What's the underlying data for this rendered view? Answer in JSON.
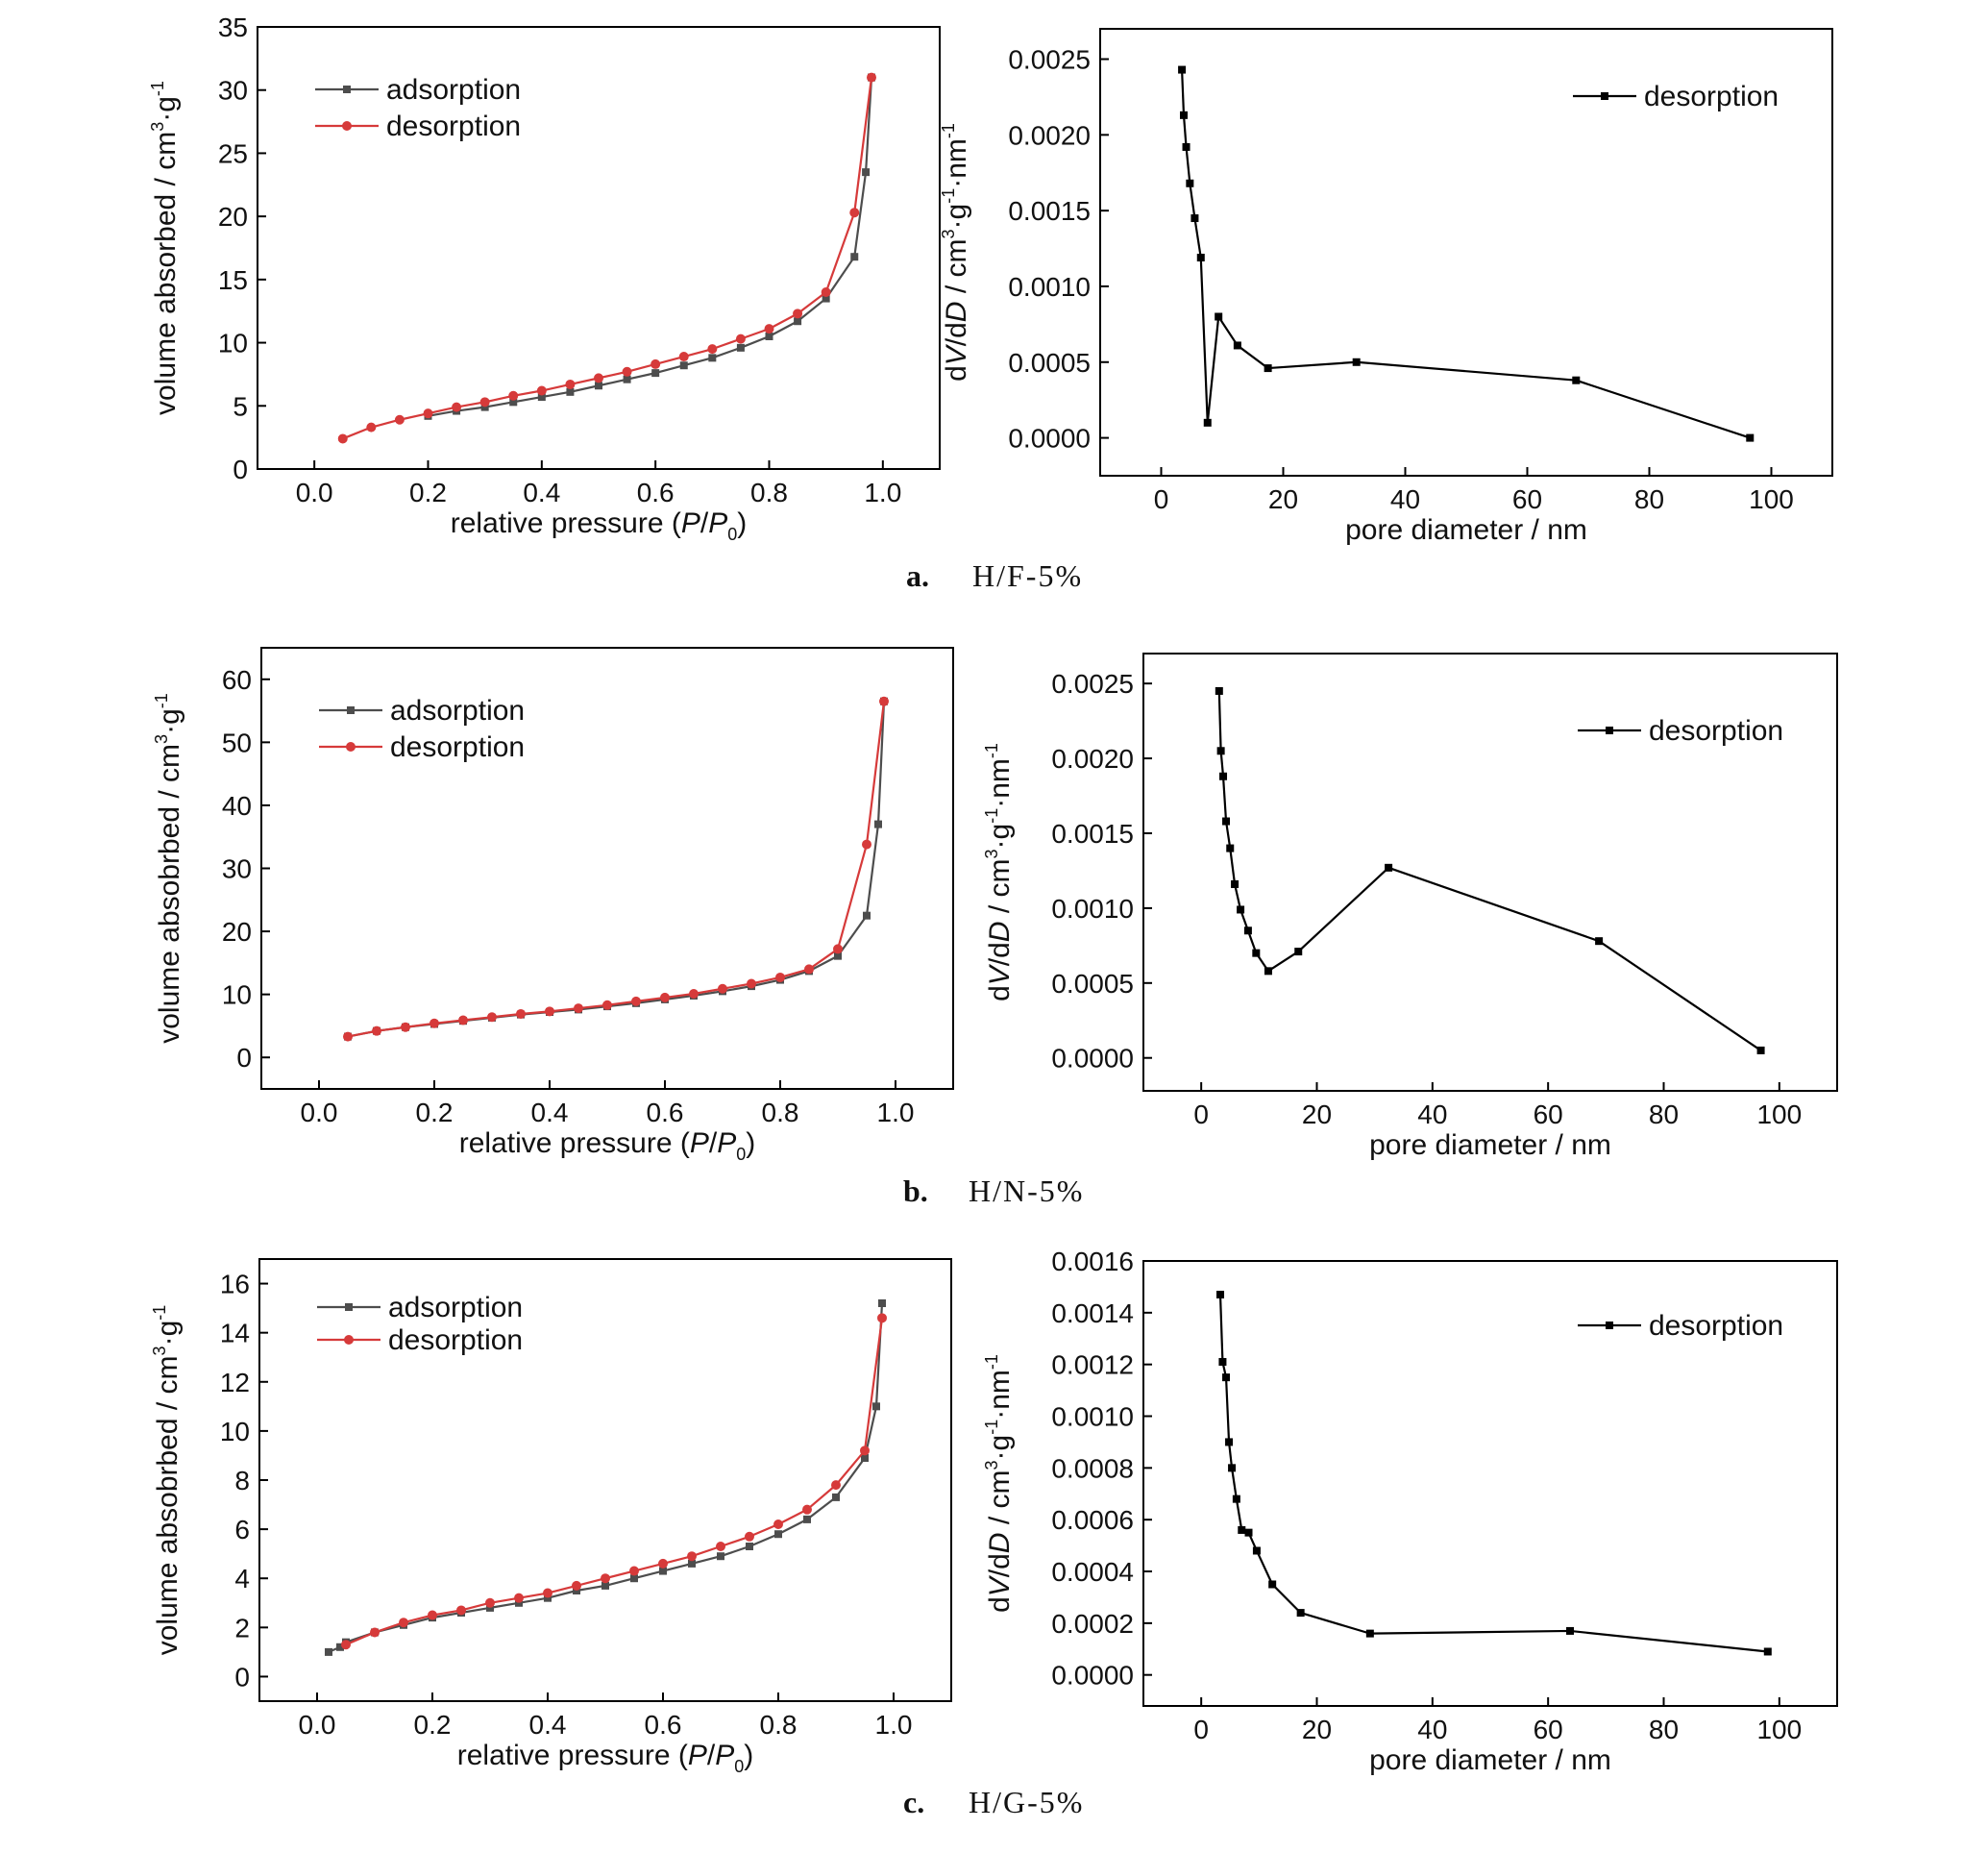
{
  "colors": {
    "adsorption": "#4d4d4d",
    "desorption": "#d63a3a",
    "psd": "#000000"
  },
  "captions": [
    {
      "label": "a.",
      "title": "H/F-5%"
    },
    {
      "label": "b.",
      "title": "H/N-5%"
    },
    {
      "label": "c.",
      "title": "H/G-5%"
    }
  ],
  "chart_data": [
    {
      "id": "a-iso",
      "type": "line",
      "xlabel": "relative pressure (P/P0)",
      "ylabel": "volume absorbed / cm3·g-1",
      "xlim": [
        -0.1,
        1.1
      ],
      "ylim": [
        0,
        35
      ],
      "xticks": [
        0.0,
        0.2,
        0.4,
        0.6,
        0.8,
        1.0
      ],
      "xtick_labels": [
        "0.0",
        "0.2",
        "0.4",
        "0.6",
        "0.8",
        "1.0"
      ],
      "yticks": [
        0,
        5,
        10,
        15,
        20,
        25,
        30,
        35
      ],
      "ytick_labels": [
        "0",
        "5",
        "10",
        "15",
        "20",
        "25",
        "30",
        "35"
      ],
      "legend": "top-left",
      "series": [
        {
          "name": "adsorption",
          "marker": "square",
          "color": "#4d4d4d",
          "x": [
            0.2,
            0.25,
            0.3,
            0.35,
            0.4,
            0.45,
            0.5,
            0.55,
            0.6,
            0.65,
            0.7,
            0.75,
            0.8,
            0.85,
            0.9,
            0.95,
            0.97,
            0.98
          ],
          "y": [
            4.2,
            4.6,
            4.9,
            5.3,
            5.7,
            6.1,
            6.6,
            7.1,
            7.6,
            8.2,
            8.8,
            9.6,
            10.5,
            11.7,
            13.5,
            16.8,
            23.5,
            31.0
          ]
        },
        {
          "name": "desorption",
          "marker": "circle",
          "color": "#d63a3a",
          "x": [
            0.05,
            0.1,
            0.15,
            0.2,
            0.25,
            0.3,
            0.35,
            0.4,
            0.45,
            0.5,
            0.55,
            0.6,
            0.65,
            0.7,
            0.75,
            0.8,
            0.85,
            0.9,
            0.95,
            0.98
          ],
          "y": [
            2.4,
            3.3,
            3.9,
            4.4,
            4.9,
            5.3,
            5.8,
            6.2,
            6.7,
            7.2,
            7.7,
            8.3,
            8.9,
            9.5,
            10.3,
            11.1,
            12.3,
            14.0,
            20.3,
            31.0
          ]
        }
      ]
    },
    {
      "id": "a-psd",
      "type": "line",
      "xlabel": "pore diameter / nm",
      "ylabel": "dV/dD / cm3·g-1·nm-1",
      "xlim": [
        -10,
        110
      ],
      "ylim": [
        -0.00025,
        0.0027
      ],
      "xticks": [
        0,
        20,
        40,
        60,
        80,
        100
      ],
      "xtick_labels": [
        "0",
        "20",
        "40",
        "60",
        "80",
        "100"
      ],
      "yticks": [
        0,
        0.0005,
        0.001,
        0.0015,
        0.002,
        0.0025
      ],
      "ytick_labels": [
        "0.0000",
        "0.0005",
        "0.0010",
        "0.0015",
        "0.0020",
        "0.0025"
      ],
      "legend": "top-right",
      "series": [
        {
          "name": "desorption",
          "marker": "square",
          "color": "#000000",
          "x": [
            3.4,
            3.7,
            4.1,
            4.7,
            5.5,
            6.5,
            7.6,
            9.4,
            12.5,
            17.5,
            32,
            68,
            96.5
          ],
          "y": [
            0.00243,
            0.00213,
            0.00192,
            0.00168,
            0.00145,
            0.00119,
            0.0001,
            0.0008,
            0.00061,
            0.00046,
            0.0005,
            0.00038,
            0.0
          ]
        }
      ]
    },
    {
      "id": "b-iso",
      "type": "line",
      "xlabel": "relative pressure (P/P0)",
      "ylabel": "volume absobrbed / cm3·g-1",
      "xlim": [
        -0.1,
        1.1
      ],
      "ylim": [
        -5,
        65
      ],
      "xticks": [
        0.0,
        0.2,
        0.4,
        0.6,
        0.8,
        1.0
      ],
      "xtick_labels": [
        "0.0",
        "0.2",
        "0.4",
        "0.6",
        "0.8",
        "1.0"
      ],
      "yticks": [
        0,
        10,
        20,
        30,
        40,
        50,
        60
      ],
      "ytick_labels": [
        "0",
        "10",
        "20",
        "30",
        "40",
        "50",
        "60"
      ],
      "legend": "top-left",
      "series": [
        {
          "name": "adsorption",
          "marker": "square",
          "color": "#4d4d4d",
          "x": [
            0.05,
            0.1,
            0.15,
            0.2,
            0.25,
            0.3,
            0.35,
            0.4,
            0.45,
            0.5,
            0.55,
            0.6,
            0.65,
            0.7,
            0.75,
            0.8,
            0.85,
            0.9,
            0.95,
            0.97,
            0.98
          ],
          "y": [
            3.3,
            4.2,
            4.8,
            5.3,
            5.8,
            6.3,
            6.8,
            7.2,
            7.6,
            8.1,
            8.6,
            9.2,
            9.8,
            10.5,
            11.3,
            12.3,
            13.7,
            16.1,
            22.5,
            37.0,
            56.5
          ]
        },
        {
          "name": "desorption",
          "marker": "circle",
          "color": "#d63a3a",
          "x": [
            0.05,
            0.1,
            0.15,
            0.2,
            0.25,
            0.3,
            0.35,
            0.4,
            0.45,
            0.5,
            0.55,
            0.6,
            0.65,
            0.7,
            0.75,
            0.8,
            0.85,
            0.9,
            0.95,
            0.98
          ],
          "y": [
            3.3,
            4.2,
            4.8,
            5.4,
            5.9,
            6.4,
            6.9,
            7.3,
            7.8,
            8.3,
            8.9,
            9.5,
            10.1,
            10.9,
            11.7,
            12.7,
            14.0,
            17.2,
            33.8,
            56.5
          ]
        }
      ]
    },
    {
      "id": "b-psd",
      "type": "line",
      "xlabel": "pore diameter / nm",
      "ylabel": "dV/dD / cm3·g-1·nm-1",
      "xlim": [
        -10,
        110
      ],
      "ylim": [
        -0.00022,
        0.0027
      ],
      "xticks": [
        0,
        20,
        40,
        60,
        80,
        100
      ],
      "xtick_labels": [
        "0",
        "20",
        "40",
        "60",
        "80",
        "100"
      ],
      "yticks": [
        0,
        0.0005,
        0.001,
        0.0015,
        0.002,
        0.0025
      ],
      "ytick_labels": [
        "0.0000",
        "0.0005",
        "0.0010",
        "0.0015",
        "0.0020",
        "0.0025"
      ],
      "legend": "top-right",
      "series": [
        {
          "name": "desorption",
          "marker": "square",
          "color": "#000000",
          "x": [
            3.1,
            3.4,
            3.8,
            4.3,
            5.0,
            5.8,
            6.8,
            8.1,
            9.5,
            11.6,
            16.8,
            32.4,
            68.8,
            96.8
          ],
          "y": [
            0.00245,
            0.00205,
            0.00188,
            0.00158,
            0.0014,
            0.00116,
            0.00099,
            0.00085,
            0.0007,
            0.00058,
            0.00071,
            0.00127,
            0.00078,
            5e-05
          ]
        }
      ]
    },
    {
      "id": "c-iso",
      "type": "line",
      "xlabel": "relative pressure (P/P0)",
      "ylabel": "volume absobrbed / cm3·g-1",
      "xlim": [
        -0.1,
        1.1
      ],
      "ylim": [
        -1,
        17
      ],
      "xticks": [
        0.0,
        0.2,
        0.4,
        0.6,
        0.8,
        1.0
      ],
      "xtick_labels": [
        "0.0",
        "0.2",
        "0.4",
        "0.6",
        "0.8",
        "1.0"
      ],
      "yticks": [
        0,
        2,
        4,
        6,
        8,
        10,
        12,
        14,
        16
      ],
      "ytick_labels": [
        "0",
        "2",
        "4",
        "6",
        "8",
        "10",
        "12",
        "14",
        "16"
      ],
      "legend": "top-left",
      "series": [
        {
          "name": "adsorption",
          "marker": "square",
          "color": "#4d4d4d",
          "x": [
            0.02,
            0.04,
            0.05,
            0.1,
            0.15,
            0.2,
            0.25,
            0.3,
            0.35,
            0.4,
            0.45,
            0.5,
            0.55,
            0.6,
            0.65,
            0.7,
            0.75,
            0.8,
            0.85,
            0.9,
            0.95,
            0.97,
            0.98
          ],
          "y": [
            1.0,
            1.2,
            1.4,
            1.8,
            2.1,
            2.4,
            2.6,
            2.8,
            3.0,
            3.2,
            3.5,
            3.7,
            4.0,
            4.3,
            4.6,
            4.9,
            5.3,
            5.8,
            6.4,
            7.3,
            8.9,
            11.0,
            15.2
          ]
        },
        {
          "name": "desorption",
          "marker": "circle",
          "color": "#d63a3a",
          "x": [
            0.05,
            0.1,
            0.15,
            0.2,
            0.25,
            0.3,
            0.35,
            0.4,
            0.45,
            0.5,
            0.55,
            0.6,
            0.65,
            0.7,
            0.75,
            0.8,
            0.85,
            0.9,
            0.95,
            0.98
          ],
          "y": [
            1.3,
            1.8,
            2.2,
            2.5,
            2.7,
            3.0,
            3.2,
            3.4,
            3.7,
            4.0,
            4.3,
            4.6,
            4.9,
            5.3,
            5.7,
            6.2,
            6.8,
            7.8,
            9.2,
            14.6
          ]
        }
      ]
    },
    {
      "id": "c-psd",
      "type": "line",
      "xlabel": "pore diameter / nm",
      "ylabel": "dV/dD / cm3·g-1·nm-1",
      "xlim": [
        -10,
        110
      ],
      "ylim": [
        -0.00012,
        0.0016
      ],
      "xticks": [
        0,
        20,
        40,
        60,
        80,
        100
      ],
      "xtick_labels": [
        "0",
        "20",
        "40",
        "60",
        "80",
        "100"
      ],
      "yticks": [
        0,
        0.0002,
        0.0004,
        0.0006,
        0.0008,
        0.001,
        0.0012,
        0.0014,
        0.0016
      ],
      "ytick_labels": [
        "0.0000",
        "0.0002",
        "0.0004",
        "0.0006",
        "0.0008",
        "0.0010",
        "0.0012",
        "0.0014",
        "0.0016"
      ],
      "legend": "top-right",
      "series": [
        {
          "name": "desorption",
          "marker": "square",
          "color": "#000000",
          "x": [
            3.3,
            3.7,
            4.3,
            4.8,
            5.3,
            6.1,
            7.0,
            8.2,
            9.6,
            12.3,
            17.2,
            29.2,
            63.8,
            98.0
          ],
          "y": [
            0.00147,
            0.00121,
            0.00115,
            0.0009,
            0.0008,
            0.00068,
            0.00056,
            0.00055,
            0.00048,
            0.00035,
            0.00024,
            0.00016,
            0.00017,
            9e-05
          ]
        }
      ]
    }
  ]
}
